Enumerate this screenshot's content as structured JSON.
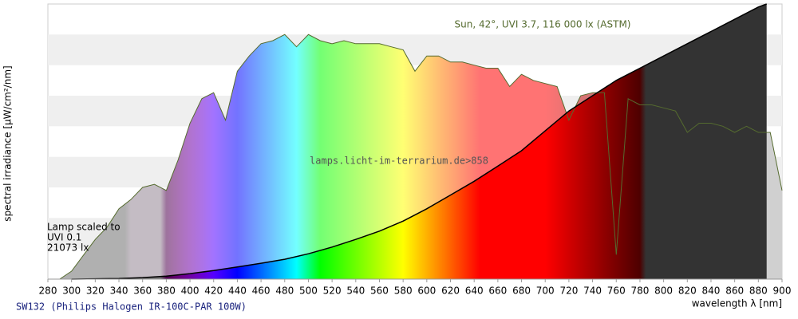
{
  "chart_data": {
    "type": "area",
    "title": "Sun, 42°, UVI 3.7, 116 000 lx (ASTM)",
    "watermark": "lamps.licht-im-terrarium.de>858",
    "annotation": [
      "Lamp scaled to",
      "UVI 0.1",
      "21073 lx"
    ],
    "ylabel": "spectral irradiance [µW/cm²/nm]",
    "xlabel": "wavelength λ [nm]",
    "footer": "SW132 (Philips Halogen IR-100C-PAR 100W)",
    "xlim": [
      280,
      900
    ],
    "xticks": [
      280,
      300,
      320,
      340,
      360,
      380,
      400,
      420,
      440,
      460,
      480,
      500,
      520,
      540,
      560,
      580,
      600,
      620,
      640,
      660,
      680,
      700,
      720,
      740,
      760,
      780,
      800,
      820,
      840,
      860,
      880,
      900
    ],
    "ylim": [
      0,
      9
    ],
    "grid": true,
    "series": [
      {
        "name": "Sun",
        "color": "#556b2f",
        "x": [
          290,
          300,
          310,
          320,
          330,
          340,
          350,
          360,
          370,
          380,
          390,
          400,
          410,
          420,
          430,
          440,
          450,
          460,
          470,
          480,
          490,
          500,
          510,
          520,
          530,
          540,
          550,
          560,
          570,
          580,
          590,
          600,
          610,
          620,
          630,
          640,
          650,
          660,
          670,
          680,
          690,
          700,
          710,
          720,
          730,
          740,
          750,
          760,
          770,
          780,
          790,
          800,
          810,
          820,
          830,
          840,
          850,
          860,
          870,
          880,
          890,
          900
        ],
        "values": [
          0,
          0.26,
          0.78,
          1.3,
          1.7,
          2.3,
          2.6,
          3.0,
          3.1,
          2.9,
          3.9,
          5.1,
          5.9,
          6.1,
          5.2,
          6.8,
          7.3,
          7.7,
          7.8,
          8.0,
          7.6,
          8.0,
          7.8,
          7.7,
          7.8,
          7.7,
          7.7,
          7.7,
          7.6,
          7.5,
          6.8,
          7.3,
          7.3,
          7.1,
          7.1,
          7.0,
          6.9,
          6.9,
          6.3,
          6.7,
          6.5,
          6.4,
          6.3,
          5.2,
          6.0,
          6.1,
          6.1,
          0.8,
          5.9,
          5.7,
          5.7,
          5.6,
          5.5,
          4.8,
          5.1,
          5.1,
          5.0,
          4.8,
          5.0,
          4.8,
          4.8,
          2.9
        ]
      },
      {
        "name": "SW132",
        "color": "#000000",
        "x": [
          300,
          320,
          340,
          360,
          380,
          400,
          420,
          440,
          460,
          480,
          500,
          520,
          540,
          560,
          580,
          600,
          620,
          640,
          660,
          680,
          700,
          720,
          740,
          760,
          780,
          800,
          820,
          840,
          860,
          880,
          887
        ],
        "values": [
          0,
          0.01,
          0.02,
          0.05,
          0.1,
          0.18,
          0.28,
          0.4,
          0.52,
          0.65,
          0.83,
          1.05,
          1.3,
          1.57,
          1.9,
          2.3,
          2.75,
          3.2,
          3.7,
          4.2,
          4.85,
          5.5,
          6.0,
          6.5,
          6.9,
          7.3,
          7.7,
          8.1,
          8.5,
          8.9,
          9.0
        ]
      }
    ]
  }
}
